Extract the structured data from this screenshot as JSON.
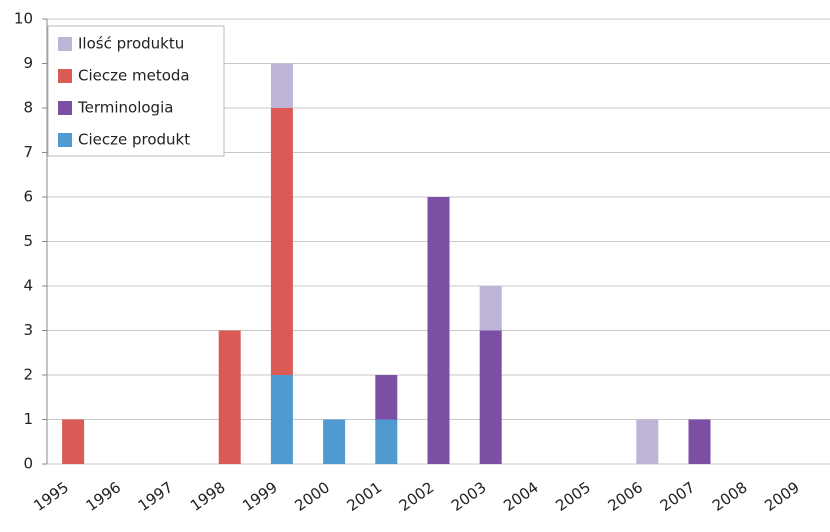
{
  "chart_data": {
    "type": "stacked_bar",
    "categories": [
      "1995",
      "1996",
      "1997",
      "1998",
      "1999",
      "2000",
      "2001",
      "2002",
      "2003",
      "2004",
      "2005",
      "2006",
      "2007",
      "2008",
      "2009"
    ],
    "series": [
      {
        "name": "Ciecze produkt",
        "color": "#4f9ad0",
        "values": [
          0,
          0,
          0,
          0,
          2,
          1,
          1,
          0,
          0,
          0,
          0,
          0,
          0,
          0,
          0
        ]
      },
      {
        "name": "Terminologia",
        "color": "#7b4fa3",
        "values": [
          0,
          0,
          0,
          0,
          0,
          0,
          1,
          6,
          3,
          0,
          0,
          0,
          1,
          0,
          0
        ]
      },
      {
        "name": "Ciecze metoda",
        "color": "#da5a55",
        "values": [
          1,
          0,
          0,
          3,
          6,
          0,
          0,
          0,
          0,
          0,
          0,
          0,
          0,
          0,
          0
        ]
      },
      {
        "name": "Ilość produktu",
        "color": "#bdb4d6",
        "values": [
          0,
          0,
          0,
          0,
          1,
          0,
          0,
          0,
          1,
          0,
          0,
          1,
          0,
          0,
          0
        ]
      }
    ],
    "ylim": [
      0,
      10
    ],
    "yticks": [
      0,
      1,
      2,
      3,
      4,
      5,
      6,
      7,
      8,
      9,
      10
    ],
    "grid": true,
    "legend": "upper left"
  }
}
